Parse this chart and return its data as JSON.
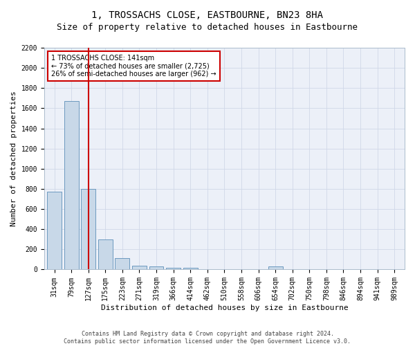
{
  "title": "1, TROSSACHS CLOSE, EASTBOURNE, BN23 8HA",
  "subtitle": "Size of property relative to detached houses in Eastbourne",
  "xlabel": "Distribution of detached houses by size in Eastbourne",
  "ylabel": "Number of detached properties",
  "categories": [
    "31sqm",
    "79sqm",
    "127sqm",
    "175sqm",
    "223sqm",
    "271sqm",
    "319sqm",
    "366sqm",
    "414sqm",
    "462sqm",
    "510sqm",
    "558sqm",
    "606sqm",
    "654sqm",
    "702sqm",
    "750sqm",
    "798sqm",
    "846sqm",
    "894sqm",
    "941sqm",
    "989sqm"
  ],
  "values": [
    770,
    1670,
    800,
    300,
    110,
    38,
    28,
    20,
    18,
    0,
    0,
    0,
    0,
    30,
    0,
    0,
    0,
    0,
    0,
    0,
    0
  ],
  "bar_color": "#c8d8e8",
  "bar_edge_color": "#5b8db8",
  "red_line_x": 2,
  "annotation_text": "1 TROSSACHS CLOSE: 141sqm\n← 73% of detached houses are smaller (2,725)\n26% of semi-detached houses are larger (962) →",
  "annotation_box_color": "#ffffff",
  "annotation_box_edge": "#cc0000",
  "ylim": [
    0,
    2200
  ],
  "yticks": [
    0,
    200,
    400,
    600,
    800,
    1000,
    1200,
    1400,
    1600,
    1800,
    2000,
    2200
  ],
  "footer_line1": "Contains HM Land Registry data © Crown copyright and database right 2024.",
  "footer_line2": "Contains public sector information licensed under the Open Government Licence v3.0.",
  "grid_color": "#d0d8e8",
  "title_fontsize": 10,
  "subtitle_fontsize": 9,
  "tick_fontsize": 7,
  "label_fontsize": 8,
  "annotation_fontsize": 7,
  "footer_fontsize": 6
}
